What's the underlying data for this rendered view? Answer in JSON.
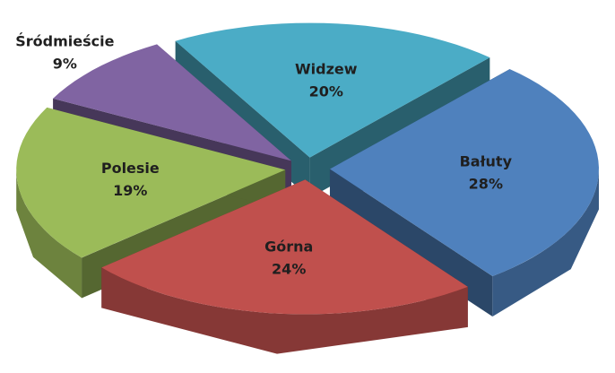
{
  "chart_data": {
    "type": "pie",
    "categories": [
      "Widzew",
      "Bałuty",
      "Górna",
      "Polesie",
      "Śródmieście"
    ],
    "values": [
      20,
      28,
      24,
      19,
      9
    ],
    "value_labels": [
      "20%",
      "28%",
      "24%",
      "19%",
      "9%"
    ],
    "colors": [
      "#4bacc6",
      "#4f81bd",
      "#c0504d",
      "#9bbb59",
      "#8064a2"
    ]
  }
}
